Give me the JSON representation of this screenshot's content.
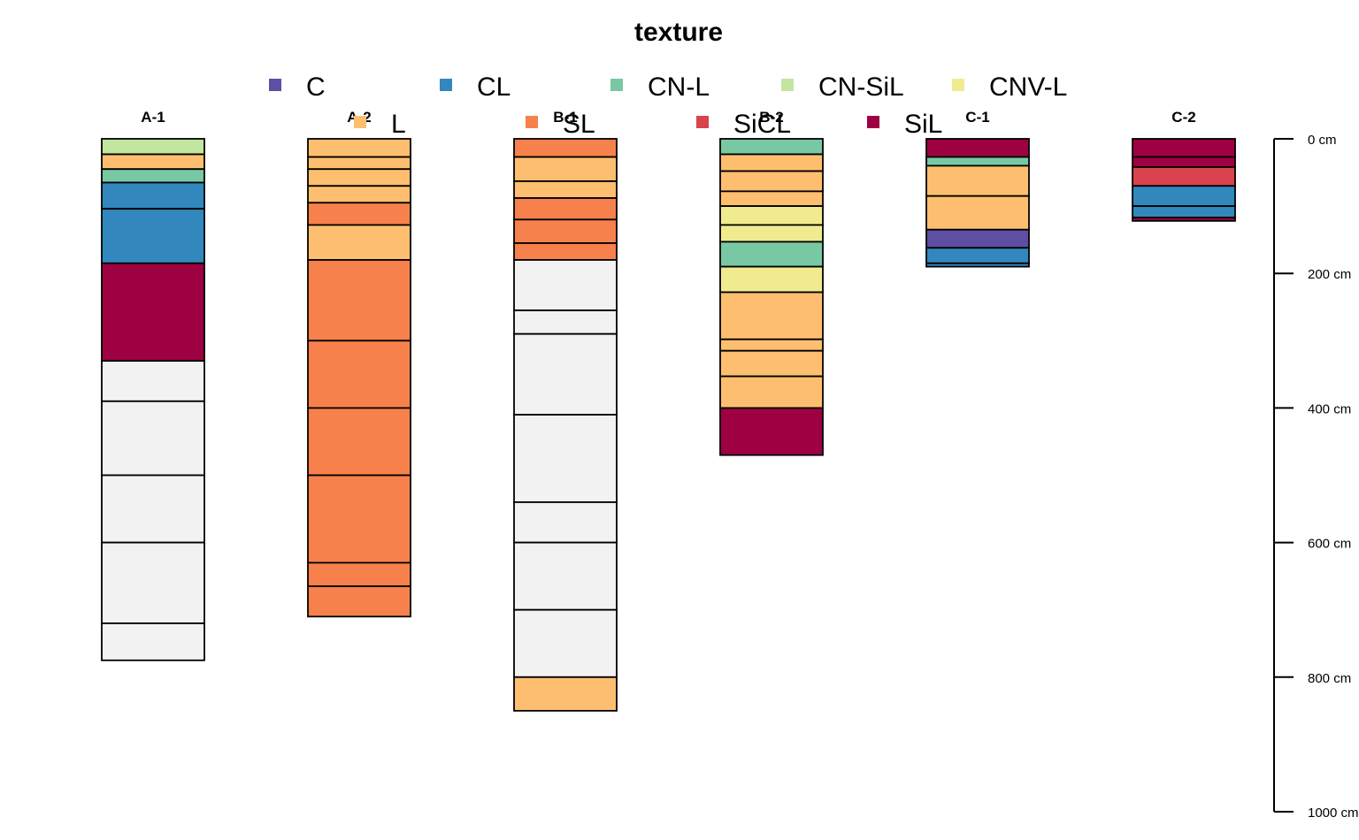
{
  "chart_data": {
    "type": "soil-profile",
    "title": "texture",
    "depth_unit": "cm",
    "depth_axis": {
      "range": [
        0,
        1000
      ],
      "ticks": [
        0,
        200,
        400,
        600,
        800,
        1000
      ],
      "tick_labels": [
        "0 cm",
        "200 cm",
        "400 cm",
        "600 cm",
        "800 cm",
        "1000 cm"
      ]
    },
    "legend": {
      "placement": "top-center",
      "entries": [
        {
          "label": "C",
          "color": "#5E4FA2"
        },
        {
          "label": "CL",
          "color": "#3288BD"
        },
        {
          "label": "CN-L",
          "color": "#78C9A3"
        },
        {
          "label": "CN-SiL",
          "color": "#C2E6A0"
        },
        {
          "label": "CNV-L",
          "color": "#F1EB8F"
        },
        {
          "label": "L",
          "color": "#FDBF6F"
        },
        {
          "label": "SL",
          "color": "#F7814C"
        },
        {
          "label": "SiCL",
          "color": "#D8434D"
        },
        {
          "label": "SiL",
          "color": "#9E0142"
        }
      ]
    },
    "missing_color": "#F2F2F2",
    "profiles": [
      {
        "name": "A-1",
        "horizons": [
          {
            "top": 0,
            "bottom": 23,
            "texture": "CN-SiL"
          },
          {
            "top": 23,
            "bottom": 45,
            "texture": "L"
          },
          {
            "top": 45,
            "bottom": 65,
            "texture": "CN-L"
          },
          {
            "top": 65,
            "bottom": 104,
            "texture": "CL"
          },
          {
            "top": 104,
            "bottom": 185,
            "texture": "CL"
          },
          {
            "top": 185,
            "bottom": 330,
            "texture": "SiL"
          },
          {
            "top": 330,
            "bottom": 390,
            "texture": null
          },
          {
            "top": 390,
            "bottom": 500,
            "texture": null
          },
          {
            "top": 500,
            "bottom": 600,
            "texture": null
          },
          {
            "top": 600,
            "bottom": 720,
            "texture": null
          },
          {
            "top": 720,
            "bottom": 775,
            "texture": null
          }
        ]
      },
      {
        "name": "A-2",
        "horizons": [
          {
            "top": 0,
            "bottom": 27,
            "texture": "L"
          },
          {
            "top": 27,
            "bottom": 45,
            "texture": "L"
          },
          {
            "top": 45,
            "bottom": 70,
            "texture": "L"
          },
          {
            "top": 70,
            "bottom": 95,
            "texture": "L"
          },
          {
            "top": 95,
            "bottom": 128,
            "texture": "SL"
          },
          {
            "top": 128,
            "bottom": 180,
            "texture": "L"
          },
          {
            "top": 180,
            "bottom": 300,
            "texture": "SL"
          },
          {
            "top": 300,
            "bottom": 400,
            "texture": "SL"
          },
          {
            "top": 400,
            "bottom": 500,
            "texture": "SL"
          },
          {
            "top": 500,
            "bottom": 630,
            "texture": "SL"
          },
          {
            "top": 630,
            "bottom": 665,
            "texture": "SL"
          },
          {
            "top": 665,
            "bottom": 710,
            "texture": "SL"
          }
        ]
      },
      {
        "name": "B-1",
        "horizons": [
          {
            "top": 0,
            "bottom": 27,
            "texture": "SL"
          },
          {
            "top": 27,
            "bottom": 63,
            "texture": "L"
          },
          {
            "top": 63,
            "bottom": 88,
            "texture": "L"
          },
          {
            "top": 88,
            "bottom": 120,
            "texture": "SL"
          },
          {
            "top": 120,
            "bottom": 155,
            "texture": "SL"
          },
          {
            "top": 155,
            "bottom": 180,
            "texture": "SL"
          },
          {
            "top": 180,
            "bottom": 255,
            "texture": null
          },
          {
            "top": 255,
            "bottom": 290,
            "texture": null
          },
          {
            "top": 290,
            "bottom": 410,
            "texture": null
          },
          {
            "top": 410,
            "bottom": 540,
            "texture": null
          },
          {
            "top": 540,
            "bottom": 600,
            "texture": null
          },
          {
            "top": 600,
            "bottom": 700,
            "texture": null
          },
          {
            "top": 700,
            "bottom": 800,
            "texture": null
          },
          {
            "top": 800,
            "bottom": 850,
            "texture": "L"
          }
        ]
      },
      {
        "name": "B-2",
        "horizons": [
          {
            "top": 0,
            "bottom": 23,
            "texture": "CN-L"
          },
          {
            "top": 23,
            "bottom": 48,
            "texture": "L"
          },
          {
            "top": 48,
            "bottom": 78,
            "texture": "L"
          },
          {
            "top": 78,
            "bottom": 100,
            "texture": "L"
          },
          {
            "top": 100,
            "bottom": 128,
            "texture": "CNV-L"
          },
          {
            "top": 128,
            "bottom": 153,
            "texture": "CNV-L"
          },
          {
            "top": 153,
            "bottom": 190,
            "texture": "CN-L"
          },
          {
            "top": 190,
            "bottom": 228,
            "texture": "CNV-L"
          },
          {
            "top": 228,
            "bottom": 298,
            "texture": "L"
          },
          {
            "top": 298,
            "bottom": 315,
            "texture": "L"
          },
          {
            "top": 315,
            "bottom": 353,
            "texture": "L"
          },
          {
            "top": 353,
            "bottom": 400,
            "texture": "L"
          },
          {
            "top": 400,
            "bottom": 470,
            "texture": "SiL"
          }
        ]
      },
      {
        "name": "C-1",
        "horizons": [
          {
            "top": 0,
            "bottom": 27,
            "texture": "SiL"
          },
          {
            "top": 27,
            "bottom": 40,
            "texture": "CN-L"
          },
          {
            "top": 40,
            "bottom": 85,
            "texture": "L"
          },
          {
            "top": 85,
            "bottom": 135,
            "texture": "L"
          },
          {
            "top": 135,
            "bottom": 162,
            "texture": "C"
          },
          {
            "top": 162,
            "bottom": 185,
            "texture": "CL"
          },
          {
            "top": 185,
            "bottom": 190,
            "texture": "CL"
          }
        ]
      },
      {
        "name": "C-2",
        "horizons": [
          {
            "top": 0,
            "bottom": 27,
            "texture": "SiL"
          },
          {
            "top": 27,
            "bottom": 42,
            "texture": "SiL"
          },
          {
            "top": 42,
            "bottom": 70,
            "texture": "SiCL"
          },
          {
            "top": 70,
            "bottom": 100,
            "texture": "CL"
          },
          {
            "top": 100,
            "bottom": 117,
            "texture": "CL"
          },
          {
            "top": 117,
            "bottom": 122,
            "texture": "SiL"
          }
        ]
      }
    ]
  }
}
